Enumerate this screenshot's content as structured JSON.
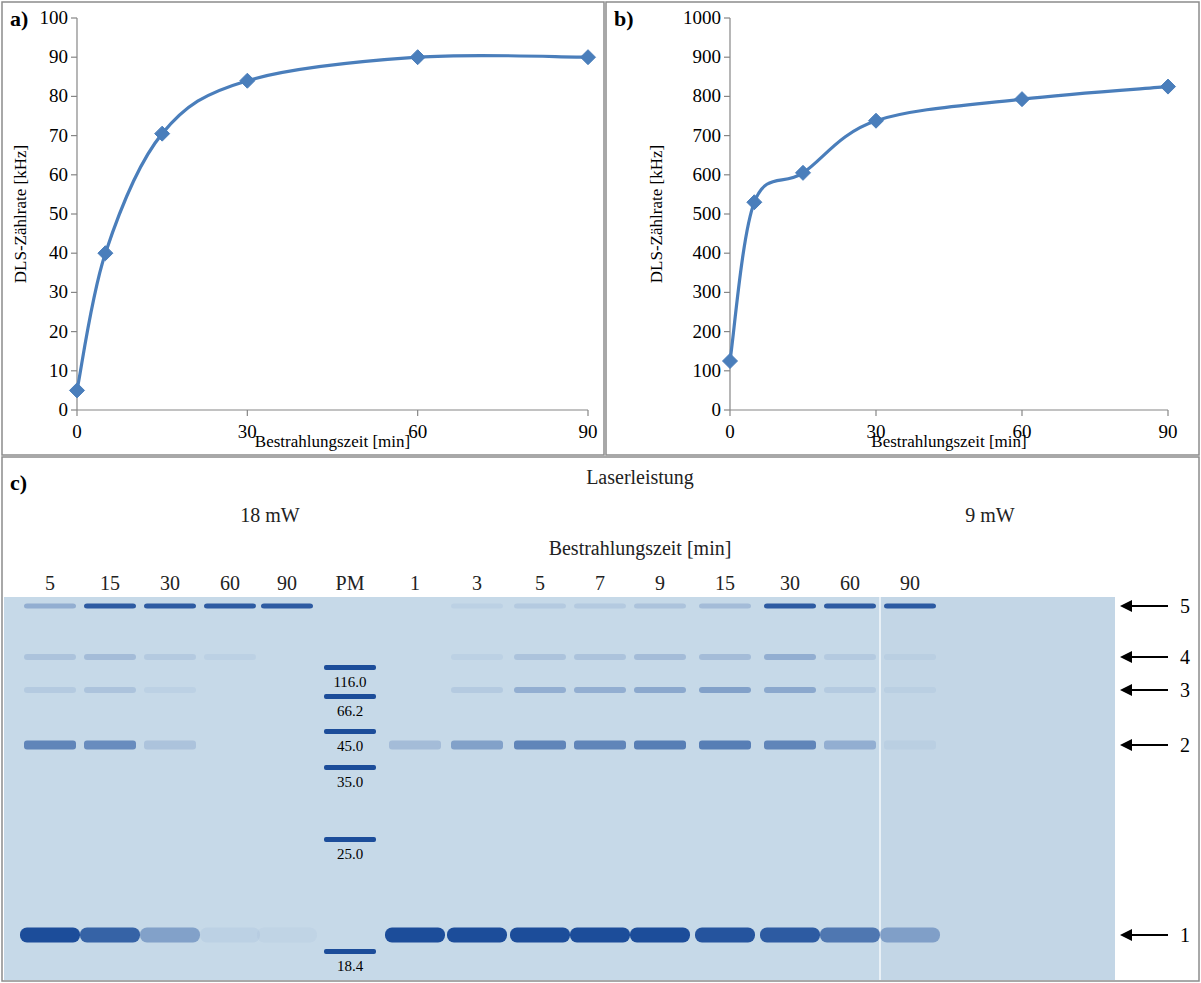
{
  "chart_data": [
    {
      "type": "line",
      "title": "a)",
      "x_label": "Bestrahlungszeit [min]",
      "y_label": "DLS-Zählrate [kHz]",
      "x": [
        0,
        5,
        15,
        30,
        60,
        90
      ],
      "series": [
        {
          "color": "#4a7ebb",
          "marker": "diamond",
          "line_style": "smooth",
          "values": [
            5,
            40,
            70.5,
            84,
            90,
            90
          ]
        }
      ],
      "xlim": [
        0,
        90
      ],
      "xticks": [
        0,
        30,
        60,
        90
      ],
      "ylim": [
        0,
        100
      ],
      "yticks": [
        0,
        10,
        20,
        30,
        40,
        50,
        60,
        70,
        80,
        90,
        100
      ],
      "grid": false
    },
    {
      "type": "line",
      "title": "b)",
      "x_label": "Bestrahlungszeit [min]",
      "y_label": "DLS-Zählrate [kHz]",
      "x": [
        0,
        5,
        15,
        30,
        60,
        90
      ],
      "series": [
        {
          "color": "#4a7ebb",
          "marker": "diamond",
          "line_style": "smooth",
          "values": [
            125,
            530,
            605,
            738,
            793,
            825
          ]
        }
      ],
      "xlim": [
        0,
        90
      ],
      "xticks": [
        0,
        30,
        60,
        90
      ],
      "ylim": [
        0,
        1000
      ],
      "yticks": [
        0,
        100,
        200,
        300,
        400,
        500,
        600,
        700,
        800,
        900,
        1000
      ],
      "grid": false
    }
  ],
  "gel": {
    "title": "c)",
    "heading": "Laserleistung",
    "subtitle": "Bestrahlungszeit [min]",
    "groups": [
      {
        "label": "18 mW",
        "lanes": [
          {
            "label": "5",
            "intensity": [
              1.0,
              0.6,
              0.1,
              0.15,
              0.3
            ]
          },
          {
            "label": "15",
            "intensity": [
              0.85,
              0.55,
              0.15,
              0.2,
              0.9
            ]
          },
          {
            "label": "30",
            "intensity": [
              0.4,
              0.15,
              0.05,
              0.1,
              0.9
            ]
          },
          {
            "label": "60",
            "intensity": [
              0.05,
              0,
              0,
              0.05,
              0.9
            ]
          },
          {
            "label": "90",
            "intensity": [
              0.03,
              0,
              0,
              0,
              0.9
            ]
          }
        ]
      },
      {
        "label": "9 mW",
        "lanes": [
          {
            "label": "1",
            "intensity": [
              1.0,
              0.2,
              0,
              0,
              0
            ]
          },
          {
            "label": "3",
            "intensity": [
              1.0,
              0.4,
              0.1,
              0.05,
              0.05
            ]
          },
          {
            "label": "5",
            "intensity": [
              1.0,
              0.6,
              0.3,
              0.15,
              0.1
            ]
          },
          {
            "label": "7",
            "intensity": [
              1.0,
              0.6,
              0.3,
              0.15,
              0.1
            ]
          },
          {
            "label": "9",
            "intensity": [
              1.0,
              0.65,
              0.35,
              0.2,
              0.15
            ]
          },
          {
            "label": "15",
            "intensity": [
              0.95,
              0.65,
              0.4,
              0.2,
              0.2
            ]
          },
          {
            "label": "30",
            "intensity": [
              0.9,
              0.6,
              0.35,
              0.3,
              0.9
            ]
          },
          {
            "label": "60",
            "intensity": [
              0.7,
              0.3,
              0.1,
              0.1,
              0.9
            ]
          },
          {
            "label": "90",
            "intensity": [
              0.4,
              0.05,
              0.05,
              0.05,
              0.9
            ]
          }
        ]
      }
    ],
    "ladder": {
      "label": "PM",
      "markers": [
        {
          "value": 116,
          "label": "116.0"
        },
        {
          "value": 66.2,
          "label": "66.2"
        },
        {
          "value": 45,
          "label": "45.0"
        },
        {
          "value": 35,
          "label": "35.0"
        },
        {
          "value": 25,
          "label": "25.0"
        },
        {
          "value": 18.4,
          "label": "18.4"
        }
      ]
    },
    "band_labels": [
      "1",
      "2",
      "3",
      "4",
      "5"
    ]
  }
}
